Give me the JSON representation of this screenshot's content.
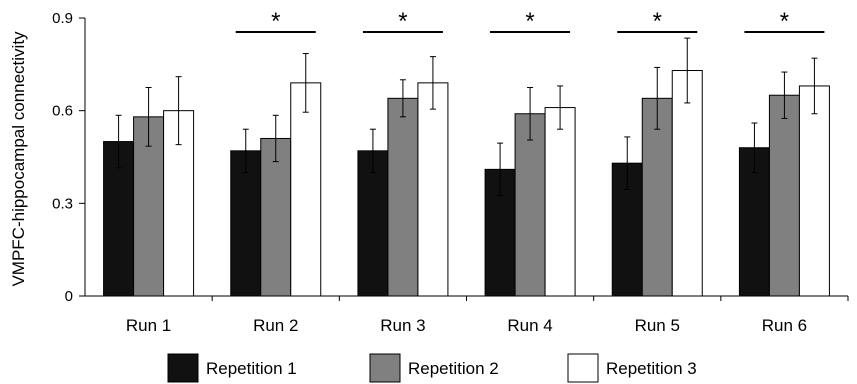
{
  "chart_data": {
    "type": "bar",
    "title": "",
    "xlabel": "",
    "ylabel": "VMPFC-hippocampal connectivity",
    "ylim": [
      0,
      0.9
    ],
    "yticks": [
      0,
      0.3,
      0.6,
      0.9
    ],
    "ytick_labels": [
      "0",
      "0.3",
      "0.6",
      "0.9"
    ],
    "categories": [
      "Run 1",
      "Run 2",
      "Run 3",
      "Run 4",
      "Run 5",
      "Run 6"
    ],
    "series": [
      {
        "name": "Repetition 1",
        "color": "#111111",
        "values": [
          0.5,
          0.47,
          0.47,
          0.41,
          0.43,
          0.48
        ],
        "errors": [
          0.085,
          0.07,
          0.07,
          0.085,
          0.085,
          0.08
        ]
      },
      {
        "name": "Repetition 2",
        "color": "#808080",
        "values": [
          0.58,
          0.51,
          0.64,
          0.59,
          0.64,
          0.65
        ],
        "errors": [
          0.095,
          0.075,
          0.06,
          0.085,
          0.1,
          0.075
        ]
      },
      {
        "name": "Repetition 3",
        "color": "#ffffff",
        "values": [
          0.6,
          0.69,
          0.69,
          0.61,
          0.73,
          0.68
        ],
        "errors": [
          0.11,
          0.095,
          0.085,
          0.07,
          0.105,
          0.09
        ]
      }
    ],
    "significance": [
      {
        "category": "Run 2",
        "label": "*"
      },
      {
        "category": "Run 3",
        "label": "*"
      },
      {
        "category": "Run 4",
        "label": "*"
      },
      {
        "category": "Run 5",
        "label": "*"
      },
      {
        "category": "Run 6",
        "label": "*"
      }
    ],
    "legend_position": "bottom",
    "grid": false
  }
}
